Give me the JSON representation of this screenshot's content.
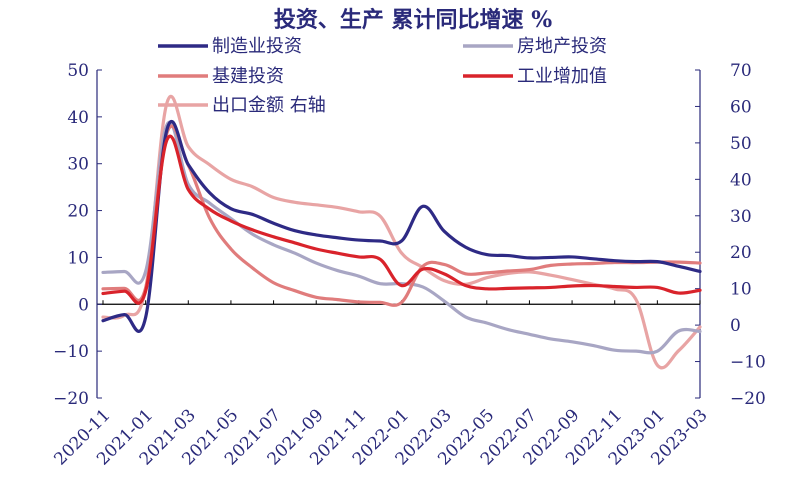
{
  "chart_data": {
    "type": "line",
    "title": "投资、生产 累计同比增速 %",
    "x": [
      "2020-11",
      "2020-12",
      "2021-01",
      "2021-02",
      "2021-03",
      "2021-04",
      "2021-05",
      "2021-06",
      "2021-07",
      "2021-08",
      "2021-09",
      "2021-10",
      "2021-11",
      "2021-12",
      "2022-01",
      "2022-02",
      "2022-03",
      "2022-04",
      "2022-05",
      "2022-06",
      "2022-07",
      "2022-08",
      "2022-09",
      "2022-10",
      "2022-11",
      "2022-12",
      "2023-01",
      "2023-02",
      "2023-03"
    ],
    "x_tick_labels": [
      "2020-11",
      "2021-01",
      "2021-03",
      "2021-05",
      "2021-07",
      "2021-09",
      "2021-11",
      "2022-01",
      "2022-03",
      "2022-05",
      "2022-07",
      "2022-09",
      "2022-11",
      "2023-01",
      "2023-03"
    ],
    "left_axis": {
      "ylim": [
        -20,
        50
      ],
      "ticks": [
        "50",
        "40",
        "30",
        "20",
        "10",
        "0",
        "−10",
        "−20"
      ]
    },
    "right_axis": {
      "ylim": [
        -20,
        70
      ],
      "ticks": [
        "70",
        "60",
        "50",
        "40",
        "30",
        "20",
        "10",
        "0",
        "−10",
        "−20"
      ]
    },
    "legend_placement": "top",
    "series": [
      {
        "name": "制造业投资",
        "axis": "left",
        "color": "#2e2a85",
        "values": [
          -3.5,
          -2.2,
          -2.8,
          37.3,
          29.8,
          23.8,
          20.4,
          19.2,
          17.3,
          15.7,
          14.8,
          14.2,
          13.7,
          13.5,
          13.5,
          20.9,
          15.6,
          12.2,
          10.6,
          10.4,
          9.9,
          10.0,
          10.1,
          9.7,
          9.3,
          9.1,
          9.1,
          8.1,
          7.0
        ]
      },
      {
        "name": "房地产投资",
        "axis": "left",
        "color": "#a8a6c4",
        "values": [
          6.8,
          7.0,
          7.0,
          38.3,
          25.6,
          21.6,
          18.3,
          15.0,
          12.7,
          10.9,
          8.8,
          7.2,
          6.0,
          4.4,
          4.4,
          3.7,
          0.7,
          -2.7,
          -4.0,
          -5.4,
          -6.4,
          -7.4,
          -8.0,
          -8.8,
          -9.8,
          -10.0,
          -10.0,
          -5.7,
          -5.8
        ]
      },
      {
        "name": "基建投资",
        "axis": "left",
        "color": "#e07c7c",
        "values": [
          3.3,
          3.4,
          3.5,
          36.6,
          29.7,
          18.4,
          11.8,
          7.8,
          4.6,
          2.9,
          1.5,
          1.0,
          0.5,
          0.4,
          0.4,
          8.1,
          8.5,
          6.5,
          6.7,
          7.1,
          7.4,
          8.3,
          8.6,
          8.7,
          8.9,
          8.9,
          9.0,
          9.0,
          8.8
        ]
      },
      {
        "name": "工业增加值",
        "axis": "left",
        "color": "#d9232b",
        "values": [
          2.3,
          2.8,
          2.8,
          35.1,
          24.5,
          20.3,
          17.8,
          15.9,
          14.4,
          13.1,
          11.8,
          10.9,
          10.1,
          9.6,
          4.0,
          7.5,
          6.5,
          4.0,
          3.3,
          3.4,
          3.5,
          3.6,
          3.9,
          4.0,
          3.8,
          3.6,
          3.6,
          2.4,
          3.0
        ]
      },
      {
        "name": "出口金额 右轴",
        "axis": "right",
        "color": "#e8a4a4",
        "values": [
          2.2,
          2.7,
          10.0,
          61.0,
          49.0,
          44.0,
          40.0,
          38.0,
          35.0,
          33.7,
          33.0,
          32.3,
          31.1,
          29.9,
          19.8,
          15.8,
          12.2,
          11.2,
          13.0,
          14.2,
          14.6,
          13.7,
          12.5,
          11.2,
          9.9,
          7.0,
          -11.0,
          -7.0,
          -0.5
        ]
      }
    ]
  }
}
